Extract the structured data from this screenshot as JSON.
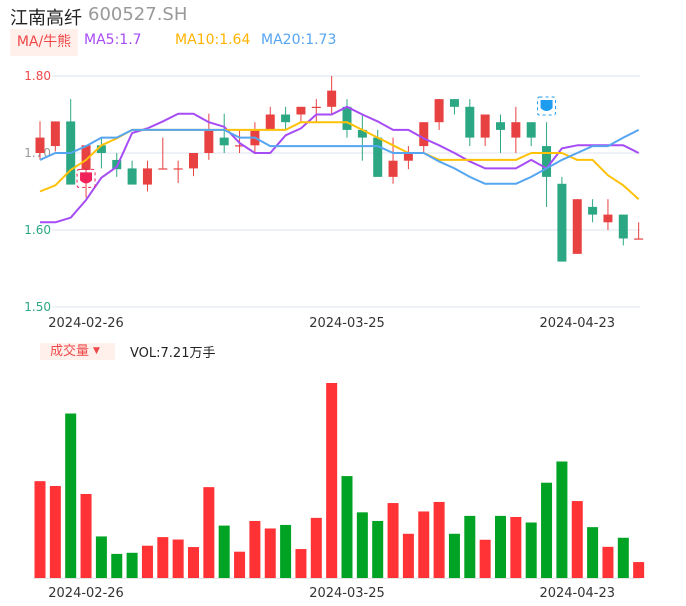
{
  "header": {
    "name": "江南高纤",
    "code": "600527.SH"
  },
  "legend": {
    "ma_button": "MA/牛熊",
    "ma5": "MA5:1.7",
    "ma10": "MA10:1.64",
    "ma20": "MA20:1.73"
  },
  "volume_legend": {
    "button": "成交量",
    "vol": "VOL:7.21万手"
  },
  "colors": {
    "up": "#e84142",
    "down": "#2ba784",
    "vol_up": "#ff3336",
    "vol_down": "#00a324",
    "ma5": "#a64cf5",
    "ma10": "#ffc107",
    "ma20": "#55a5f0",
    "grid": "#dde3ee"
  },
  "chart_data": [
    {
      "type": "candlestick",
      "ylim": [
        1.5,
        1.8
      ],
      "y_ticks": [
        "1.80",
        "1.70",
        "1.60",
        "1.50"
      ],
      "x_ticks": [
        {
          "index": 3,
          "label": "2024-02-26"
        },
        {
          "index": 20,
          "label": "2024-03-25"
        },
        {
          "index": 35,
          "label": "2024-04-23"
        }
      ],
      "grid": true,
      "ohlc": [
        [
          1.7,
          1.741,
          1.691,
          1.72
        ],
        [
          1.709,
          1.741,
          1.702,
          1.741
        ],
        [
          1.741,
          1.77,
          1.659,
          1.659
        ],
        [
          1.678,
          1.71,
          1.642,
          1.71
        ],
        [
          1.71,
          1.719,
          1.68,
          1.7
        ],
        [
          1.691,
          1.7,
          1.669,
          1.679
        ],
        [
          1.68,
          1.69,
          1.659,
          1.659
        ],
        [
          1.659,
          1.69,
          1.65,
          1.68
        ],
        [
          1.68,
          1.72,
          1.68,
          1.68
        ],
        [
          1.68,
          1.69,
          1.661,
          1.68
        ],
        [
          1.68,
          1.7,
          1.67,
          1.7
        ],
        [
          1.7,
          1.751,
          1.691,
          1.73
        ],
        [
          1.72,
          1.751,
          1.7,
          1.71
        ],
        [
          1.71,
          1.729,
          1.7,
          1.71
        ],
        [
          1.71,
          1.74,
          1.7,
          1.729
        ],
        [
          1.73,
          1.76,
          1.73,
          1.75
        ],
        [
          1.75,
          1.76,
          1.73,
          1.74
        ],
        [
          1.75,
          1.76,
          1.74,
          1.76
        ],
        [
          1.76,
          1.77,
          1.74,
          1.76
        ],
        [
          1.76,
          1.8,
          1.75,
          1.781
        ],
        [
          1.76,
          1.77,
          1.72,
          1.73
        ],
        [
          1.73,
          1.75,
          1.69,
          1.72
        ],
        [
          1.72,
          1.73,
          1.669,
          1.669
        ],
        [
          1.669,
          1.72,
          1.66,
          1.69
        ],
        [
          1.69,
          1.709,
          1.679,
          1.7
        ],
        [
          1.709,
          1.74,
          1.7,
          1.74
        ],
        [
          1.74,
          1.77,
          1.73,
          1.77
        ],
        [
          1.77,
          1.77,
          1.75,
          1.76
        ],
        [
          1.76,
          1.77,
          1.709,
          1.72
        ],
        [
          1.72,
          1.75,
          1.709,
          1.75
        ],
        [
          1.74,
          1.75,
          1.7,
          1.73
        ],
        [
          1.72,
          1.76,
          1.7,
          1.74
        ],
        [
          1.74,
          1.74,
          1.709,
          1.72
        ],
        [
          1.709,
          1.74,
          1.63,
          1.669
        ],
        [
          1.66,
          1.669,
          1.559,
          1.559
        ],
        [
          1.569,
          1.64,
          1.569,
          1.64
        ],
        [
          1.63,
          1.64,
          1.61,
          1.62
        ],
        [
          1.61,
          1.64,
          1.6,
          1.62
        ],
        [
          1.62,
          1.62,
          1.58,
          1.589
        ],
        [
          1.589,
          1.61,
          1.589,
          1.589
        ]
      ],
      "ma_series": [
        {
          "name": "MA5",
          "values": [
            1.61,
            1.61,
            1.616,
            1.639,
            1.668,
            1.682,
            1.726,
            1.732,
            1.741,
            1.751,
            1.751,
            1.74,
            1.734,
            1.713,
            1.7,
            1.7,
            1.723,
            1.732,
            1.75,
            1.75,
            1.76,
            1.75,
            1.741,
            1.73,
            1.73,
            1.719,
            1.71,
            1.7,
            1.689,
            1.68,
            1.68,
            1.68,
            1.691,
            1.68,
            1.706,
            1.71,
            1.71,
            1.71,
            1.71,
            1.7
          ]
        },
        {
          "name": "MA10",
          "values": [
            1.65,
            1.658,
            1.678,
            1.691,
            1.71,
            1.719,
            1.73,
            1.73,
            1.73,
            1.73,
            1.73,
            1.73,
            1.73,
            1.73,
            1.73,
            1.73,
            1.73,
            1.74,
            1.74,
            1.74,
            1.74,
            1.73,
            1.72,
            1.71,
            1.7,
            1.7,
            1.691,
            1.691,
            1.691,
            1.691,
            1.691,
            1.691,
            1.7,
            1.7,
            1.7,
            1.691,
            1.691,
            1.671,
            1.658,
            1.64
          ]
        },
        {
          "name": "MA20",
          "values": [
            1.691,
            1.7,
            1.7,
            1.709,
            1.72,
            1.72,
            1.73,
            1.73,
            1.73,
            1.73,
            1.73,
            1.73,
            1.73,
            1.72,
            1.72,
            1.709,
            1.709,
            1.709,
            1.709,
            1.709,
            1.709,
            1.709,
            1.709,
            1.7,
            1.7,
            1.7,
            1.689,
            1.68,
            1.669,
            1.66,
            1.66,
            1.66,
            1.669,
            1.68,
            1.691,
            1.7,
            1.709,
            1.709,
            1.72,
            1.73
          ]
        }
      ],
      "markers": [
        {
          "index": 3,
          "price": 1.667,
          "icon": "bull-icon",
          "color": "#f0245a"
        },
        {
          "index": 33,
          "price": 1.761,
          "icon": "bear-icon",
          "color": "#1e9cf0"
        }
      ]
    },
    {
      "type": "bar",
      "unit": "万手",
      "values": [
        43.8,
        41.6,
        74.4,
        38.0,
        18.8,
        10.9,
        11.4,
        14.6,
        18.5,
        17.4,
        14.0,
        41.1,
        23.7,
        11.9,
        25.8,
        22.4,
        24.0,
        13.1,
        27.2,
        88.2,
        46.1,
        29.7,
        25.8,
        33.9,
        20.0,
        30.1,
        34.4,
        20.0,
        28.1,
        17.3,
        28.1,
        27.6,
        25.1,
        43.1,
        52.7,
        34.8,
        23.0,
        14.1,
        18.2,
        7.21
      ],
      "x_ticks": [
        {
          "index": 3,
          "label": "2024-02-26"
        },
        {
          "index": 20,
          "label": "2024-03-25"
        },
        {
          "index": 35,
          "label": "2024-04-23"
        }
      ]
    }
  ]
}
